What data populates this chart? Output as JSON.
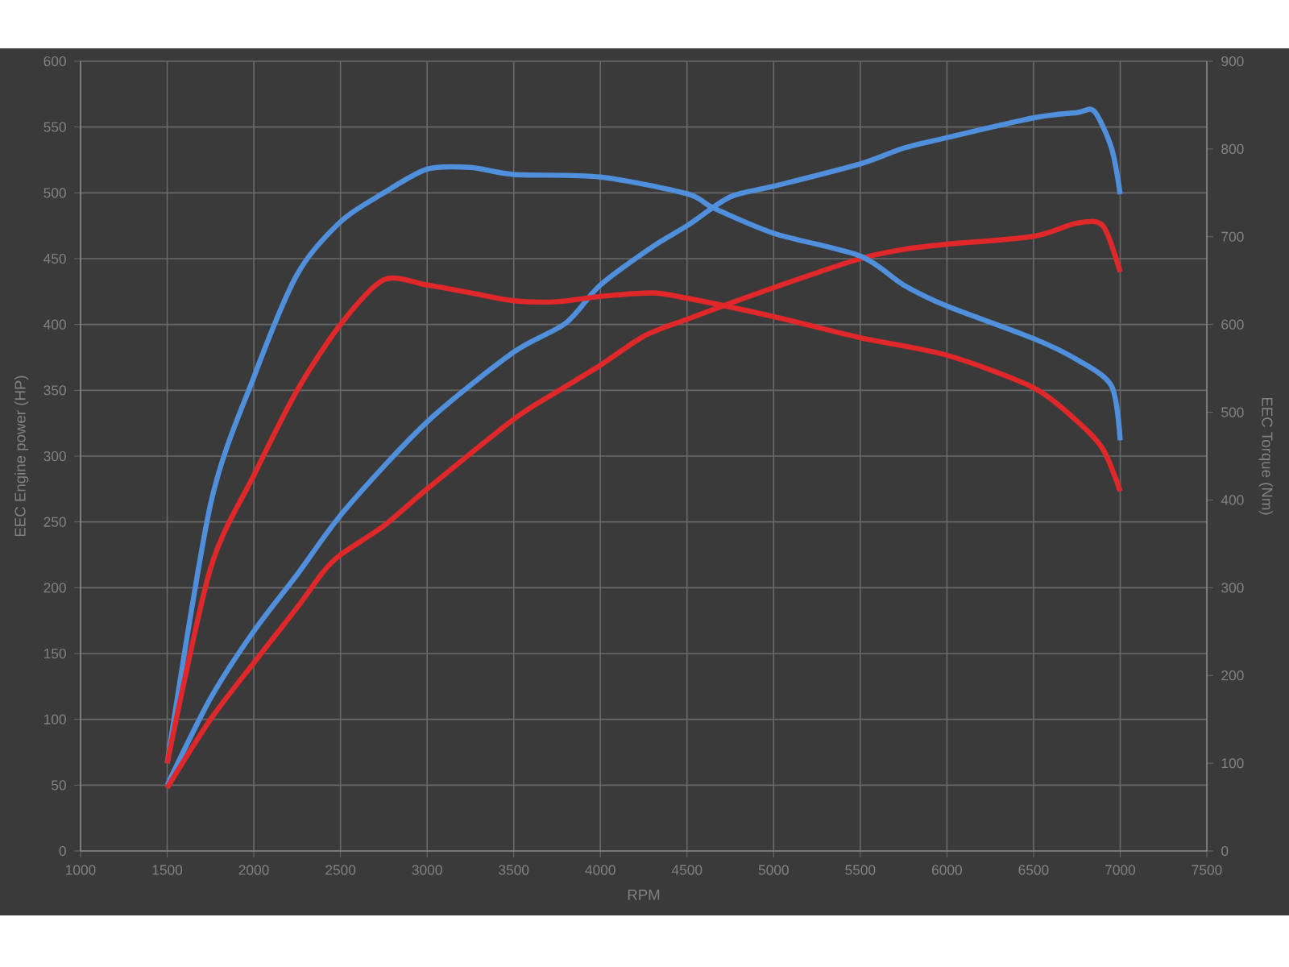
{
  "chart_data": {
    "type": "line",
    "xlabel": "RPM",
    "ylabel": "EEC Engine power (HP)",
    "y2label": "EEC Torque (Nm)",
    "xlim": [
      1000,
      7500
    ],
    "xticks": [
      1000,
      1500,
      2000,
      2500,
      3000,
      3500,
      4000,
      4500,
      5000,
      5500,
      6000,
      6500,
      7000,
      7500
    ],
    "ylim": [
      0,
      600
    ],
    "yticks": [
      0,
      50,
      100,
      150,
      200,
      250,
      300,
      350,
      400,
      450,
      500,
      550,
      600
    ],
    "y2lim": [
      0,
      900
    ],
    "y2ticks": [
      0,
      100,
      200,
      300,
      400,
      500,
      600,
      700,
      800,
      900
    ],
    "grid": true,
    "marker": "none",
    "line_style": "solid",
    "series": [
      {
        "color": "#4f8fdc",
        "axis": "y",
        "x": [
          1500,
          1750,
          2000,
          2250,
          2525,
          3000,
          3500,
          3800,
          4000,
          4300,
          4500,
          4750,
          5000,
          5500,
          5750,
          6000,
          6500,
          6750,
          6850,
          6950,
          7000
        ],
        "values": [
          50,
          116,
          167,
          210,
          259,
          326,
          379,
          401,
          430,
          459,
          475,
          497,
          505,
          522,
          534,
          542,
          557,
          561,
          562,
          534,
          499
        ]
      },
      {
        "color": "#e0282a",
        "axis": "y",
        "x": [
          1500,
          1750,
          2000,
          2250,
          2400,
          2500,
          2750,
          3000,
          3500,
          3750,
          4000,
          4250,
          4500,
          5000,
          5500,
          5750,
          6000,
          6500,
          6750,
          6900,
          7000
        ],
        "values": [
          48,
          100,
          143,
          185,
          212,
          225,
          247,
          275,
          328,
          349,
          369,
          391,
          404,
          428,
          450,
          457,
          461,
          467,
          477,
          475,
          440
        ]
      },
      {
        "color": "#4f8fdc",
        "axis": "y2",
        "x": [
          1500,
          1750,
          2000,
          2250,
          2500,
          2750,
          3000,
          3250,
          3500,
          4000,
          4500,
          4650,
          5000,
          5500,
          5750,
          6000,
          6500,
          6750,
          6950,
          7000
        ],
        "values": [
          100,
          395,
          540,
          657,
          717,
          750,
          777,
          779,
          771,
          768,
          749,
          733,
          704,
          678,
          645,
          621,
          584,
          560,
          530,
          468
        ]
      },
      {
        "color": "#e0282a",
        "axis": "y2",
        "x": [
          1500,
          1750,
          2000,
          2250,
          2500,
          2750,
          3000,
          3250,
          3500,
          3750,
          4000,
          4300,
          4500,
          5000,
          5500,
          6000,
          6500,
          6750,
          6900,
          7000
        ],
        "values": [
          100,
          322,
          428,
          525,
          600,
          651,
          645,
          636,
          627,
          626,
          632,
          636,
          630,
          609,
          585,
          565,
          528,
          490,
          458,
          410
        ]
      }
    ]
  }
}
